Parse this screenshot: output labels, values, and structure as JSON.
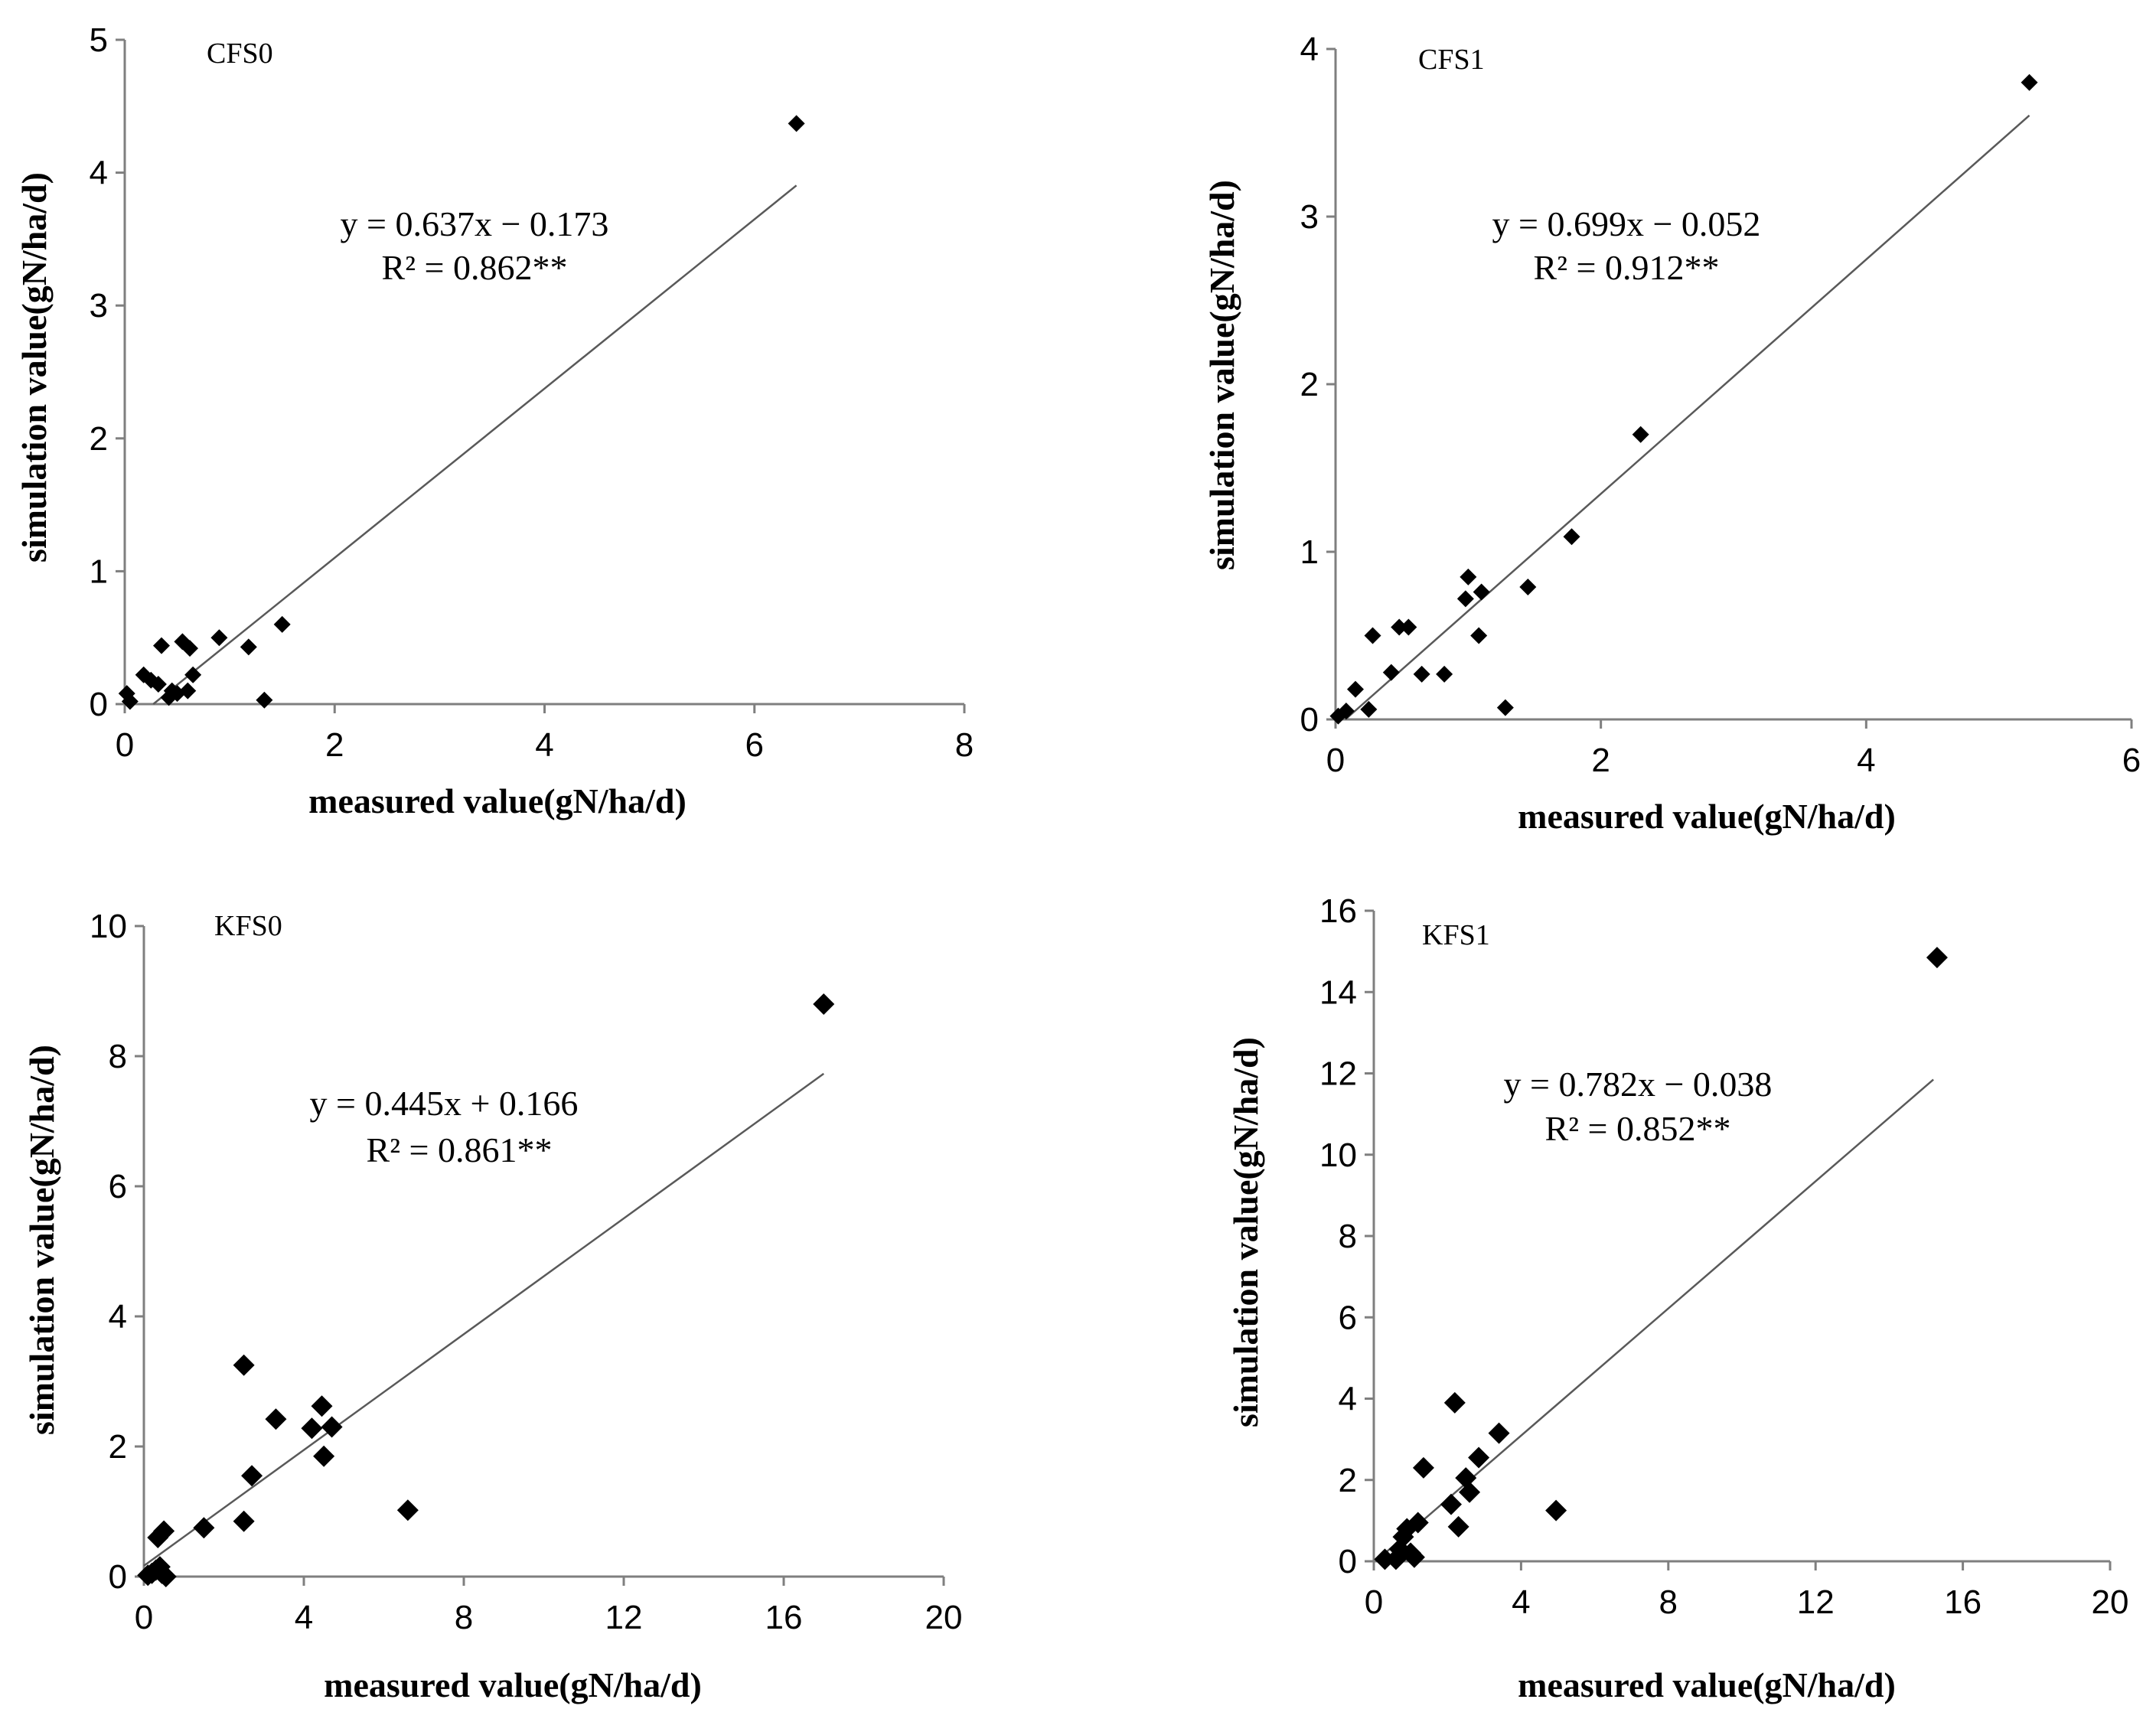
{
  "figure": {
    "point_color": "#000000",
    "axis_color": "#7f7f7f",
    "fit_color": "#595959"
  },
  "chart_data": [
    {
      "type": "scatter",
      "title": "CFS0",
      "xlabel": "measured value(gN/ha/d)",
      "ylabel": "simulation value(gN/ha/d)",
      "xlim": [
        0,
        8
      ],
      "ylim": [
        0,
        5
      ],
      "xticks": [
        0,
        2,
        4,
        6,
        8
      ],
      "yticks": [
        0,
        1,
        2,
        3,
        4,
        5
      ],
      "fit": {
        "slope": 0.637,
        "intercept": -0.173,
        "x_range": [
          0,
          6.4
        ]
      },
      "equation": "y = 0.637x − 0.173",
      "r2": "R² = 0.862**",
      "points": [
        [
          0.02,
          0.08
        ],
        [
          0.05,
          0.02
        ],
        [
          0.18,
          0.22
        ],
        [
          0.25,
          0.18
        ],
        [
          0.32,
          0.15
        ],
        [
          0.35,
          0.44
        ],
        [
          0.42,
          0.05
        ],
        [
          0.45,
          0.1
        ],
        [
          0.5,
          0.08
        ],
        [
          0.55,
          0.47
        ],
        [
          0.6,
          0.1
        ],
        [
          0.62,
          0.42
        ],
        [
          0.65,
          0.22
        ],
        [
          0.9,
          0.5
        ],
        [
          1.18,
          0.43
        ],
        [
          1.33,
          0.03
        ],
        [
          1.5,
          0.6
        ],
        [
          6.4,
          4.37
        ]
      ]
    },
    {
      "type": "scatter",
      "title": "CFS1",
      "xlabel": "measured value(gN/ha/d)",
      "ylabel": "simulation value(gN/ha/d)",
      "xlim": [
        0,
        6
      ],
      "ylim": [
        0,
        4
      ],
      "xticks": [
        0,
        2,
        4,
        6
      ],
      "yticks": [
        0,
        1,
        2,
        3,
        4
      ],
      "fit": {
        "slope": 0.699,
        "intercept": -0.052,
        "x_range": [
          0,
          5.23
        ]
      },
      "equation": "y = 0.699x − 0.052",
      "r2": "R² = 0.912**",
      "points": [
        [
          0.02,
          0.02
        ],
        [
          0.08,
          0.05
        ],
        [
          0.15,
          0.18
        ],
        [
          0.25,
          0.06
        ],
        [
          0.28,
          0.5
        ],
        [
          0.42,
          0.28
        ],
        [
          0.48,
          0.55
        ],
        [
          0.55,
          0.55
        ],
        [
          0.65,
          0.27
        ],
        [
          0.82,
          0.27
        ],
        [
          0.98,
          0.72
        ],
        [
          1.0,
          0.85
        ],
        [
          1.08,
          0.5
        ],
        [
          1.1,
          0.76
        ],
        [
          1.28,
          0.07
        ],
        [
          1.45,
          0.79
        ],
        [
          1.78,
          1.09
        ],
        [
          2.3,
          1.7
        ],
        [
          5.23,
          3.8
        ]
      ]
    },
    {
      "type": "scatter",
      "title": "KFS0",
      "xlabel": "measured value(gN/ha/d)",
      "ylabel": "simulation value(gN/ha/d)",
      "xlim": [
        0,
        20
      ],
      "ylim": [
        0,
        10
      ],
      "xticks": [
        0,
        4,
        8,
        12,
        16,
        20
      ],
      "yticks": [
        0,
        2,
        4,
        6,
        8,
        10
      ],
      "fit": {
        "slope": 0.445,
        "intercept": 0.166,
        "x_range": [
          0,
          17
        ]
      },
      "equation": "y = 0.445x + 0.166",
      "r2": "R² = 0.861**",
      "points": [
        [
          0.1,
          0.02
        ],
        [
          0.2,
          0.05
        ],
        [
          0.3,
          0.1
        ],
        [
          0.35,
          0.6
        ],
        [
          0.4,
          0.15
        ],
        [
          0.45,
          0.05
        ],
        [
          0.5,
          0.7
        ],
        [
          0.55,
          0.0
        ],
        [
          1.5,
          0.75
        ],
        [
          2.5,
          0.85
        ],
        [
          2.5,
          3.25
        ],
        [
          2.7,
          1.55
        ],
        [
          3.3,
          2.42
        ],
        [
          4.2,
          2.28
        ],
        [
          4.45,
          2.62
        ],
        [
          4.5,
          1.85
        ],
        [
          4.7,
          2.3
        ],
        [
          6.6,
          1.02
        ],
        [
          17,
          8.8
        ]
      ]
    },
    {
      "type": "scatter",
      "title": "KFS1",
      "xlabel": "measured value(gN/ha/d)",
      "ylabel": "simulation value(gN/ha/d)",
      "xlim": [
        0,
        20
      ],
      "ylim": [
        0,
        16
      ],
      "xticks": [
        0,
        4,
        8,
        12,
        16,
        20
      ],
      "yticks": [
        0,
        2,
        4,
        6,
        8,
        10,
        12,
        14,
        16
      ],
      "fit": {
        "slope": 0.782,
        "intercept": -0.038,
        "x_range": [
          0,
          15.2
        ]
      },
      "equation": "y = 0.782x − 0.038",
      "r2": "R² = 0.852**",
      "points": [
        [
          0.3,
          0.05
        ],
        [
          0.6,
          0.05
        ],
        [
          0.7,
          0.3
        ],
        [
          0.8,
          0.6
        ],
        [
          0.9,
          0.8
        ],
        [
          1.0,
          0.2
        ],
        [
          1.1,
          0.1
        ],
        [
          1.2,
          0.95
        ],
        [
          1.35,
          2.3
        ],
        [
          2.1,
          1.4
        ],
        [
          2.2,
          3.9
        ],
        [
          2.3,
          0.85
        ],
        [
          2.5,
          2.05
        ],
        [
          2.6,
          1.7
        ],
        [
          2.85,
          2.55
        ],
        [
          3.4,
          3.15
        ],
        [
          4.95,
          1.25
        ],
        [
          15.3,
          14.85
        ]
      ]
    }
  ]
}
